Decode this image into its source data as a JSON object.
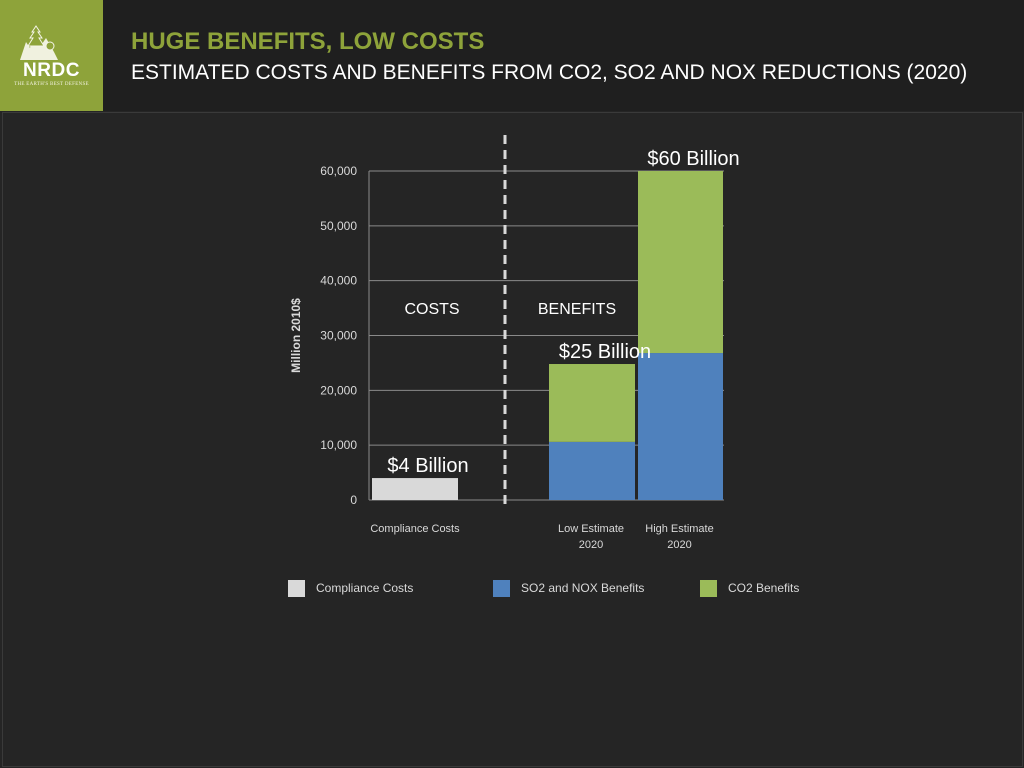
{
  "header": {
    "logo": {
      "text": "NRDC",
      "tagline": "THE EARTH'S BEST DEFENSE",
      "icon": "mountain-tree-logo-icon"
    },
    "title": "HUGE BENEFITS, LOW COSTS",
    "subtitle": "ESTIMATED COSTS AND BENEFITS FROM CO2, SO2 AND NOX REDUCTIONS (2020)"
  },
  "colors": {
    "accent": "#8ea33a",
    "compliance": "#d9d9d9",
    "so2_nox": "#4f81bd",
    "co2": "#9bbb59",
    "background": "#252525"
  },
  "chart_data": {
    "type": "bar",
    "stacked": true,
    "ylabel": "Million 2010$",
    "ylim": [
      0,
      60000
    ],
    "yticks": [
      0,
      10000,
      20000,
      30000,
      40000,
      50000,
      60000
    ],
    "ytick_labels": [
      "0",
      "10,000",
      "20,000",
      "30,000",
      "40,000",
      "50,000",
      "60,000"
    ],
    "grid": true,
    "categories": [
      [
        "Compliance Costs"
      ],
      [
        "Low Estimate",
        "2020"
      ],
      [
        "High Estimate",
        "2020"
      ]
    ],
    "series": [
      {
        "name": "Compliance Costs",
        "color": "#d9d9d9",
        "values": [
          4000,
          0,
          0
        ]
      },
      {
        "name": "SO2 and NOX Benefits",
        "color": "#4f81bd",
        "values": [
          0,
          10600,
          26800
        ]
      },
      {
        "name": "CO2 Benefits",
        "color": "#9bbb59",
        "values": [
          0,
          14200,
          33200
        ]
      }
    ],
    "annotations": [
      {
        "text": "$4 Billion",
        "category": 0,
        "value": 4000
      },
      {
        "text": "$25 Billion",
        "category": 1,
        "value": 24800
      },
      {
        "text": "$60 Billion",
        "category": 2,
        "value": 60000
      }
    ],
    "regions": [
      {
        "label": "COSTS"
      },
      {
        "label": "BENEFITS"
      }
    ],
    "legend": {
      "placement": "bottom"
    }
  }
}
